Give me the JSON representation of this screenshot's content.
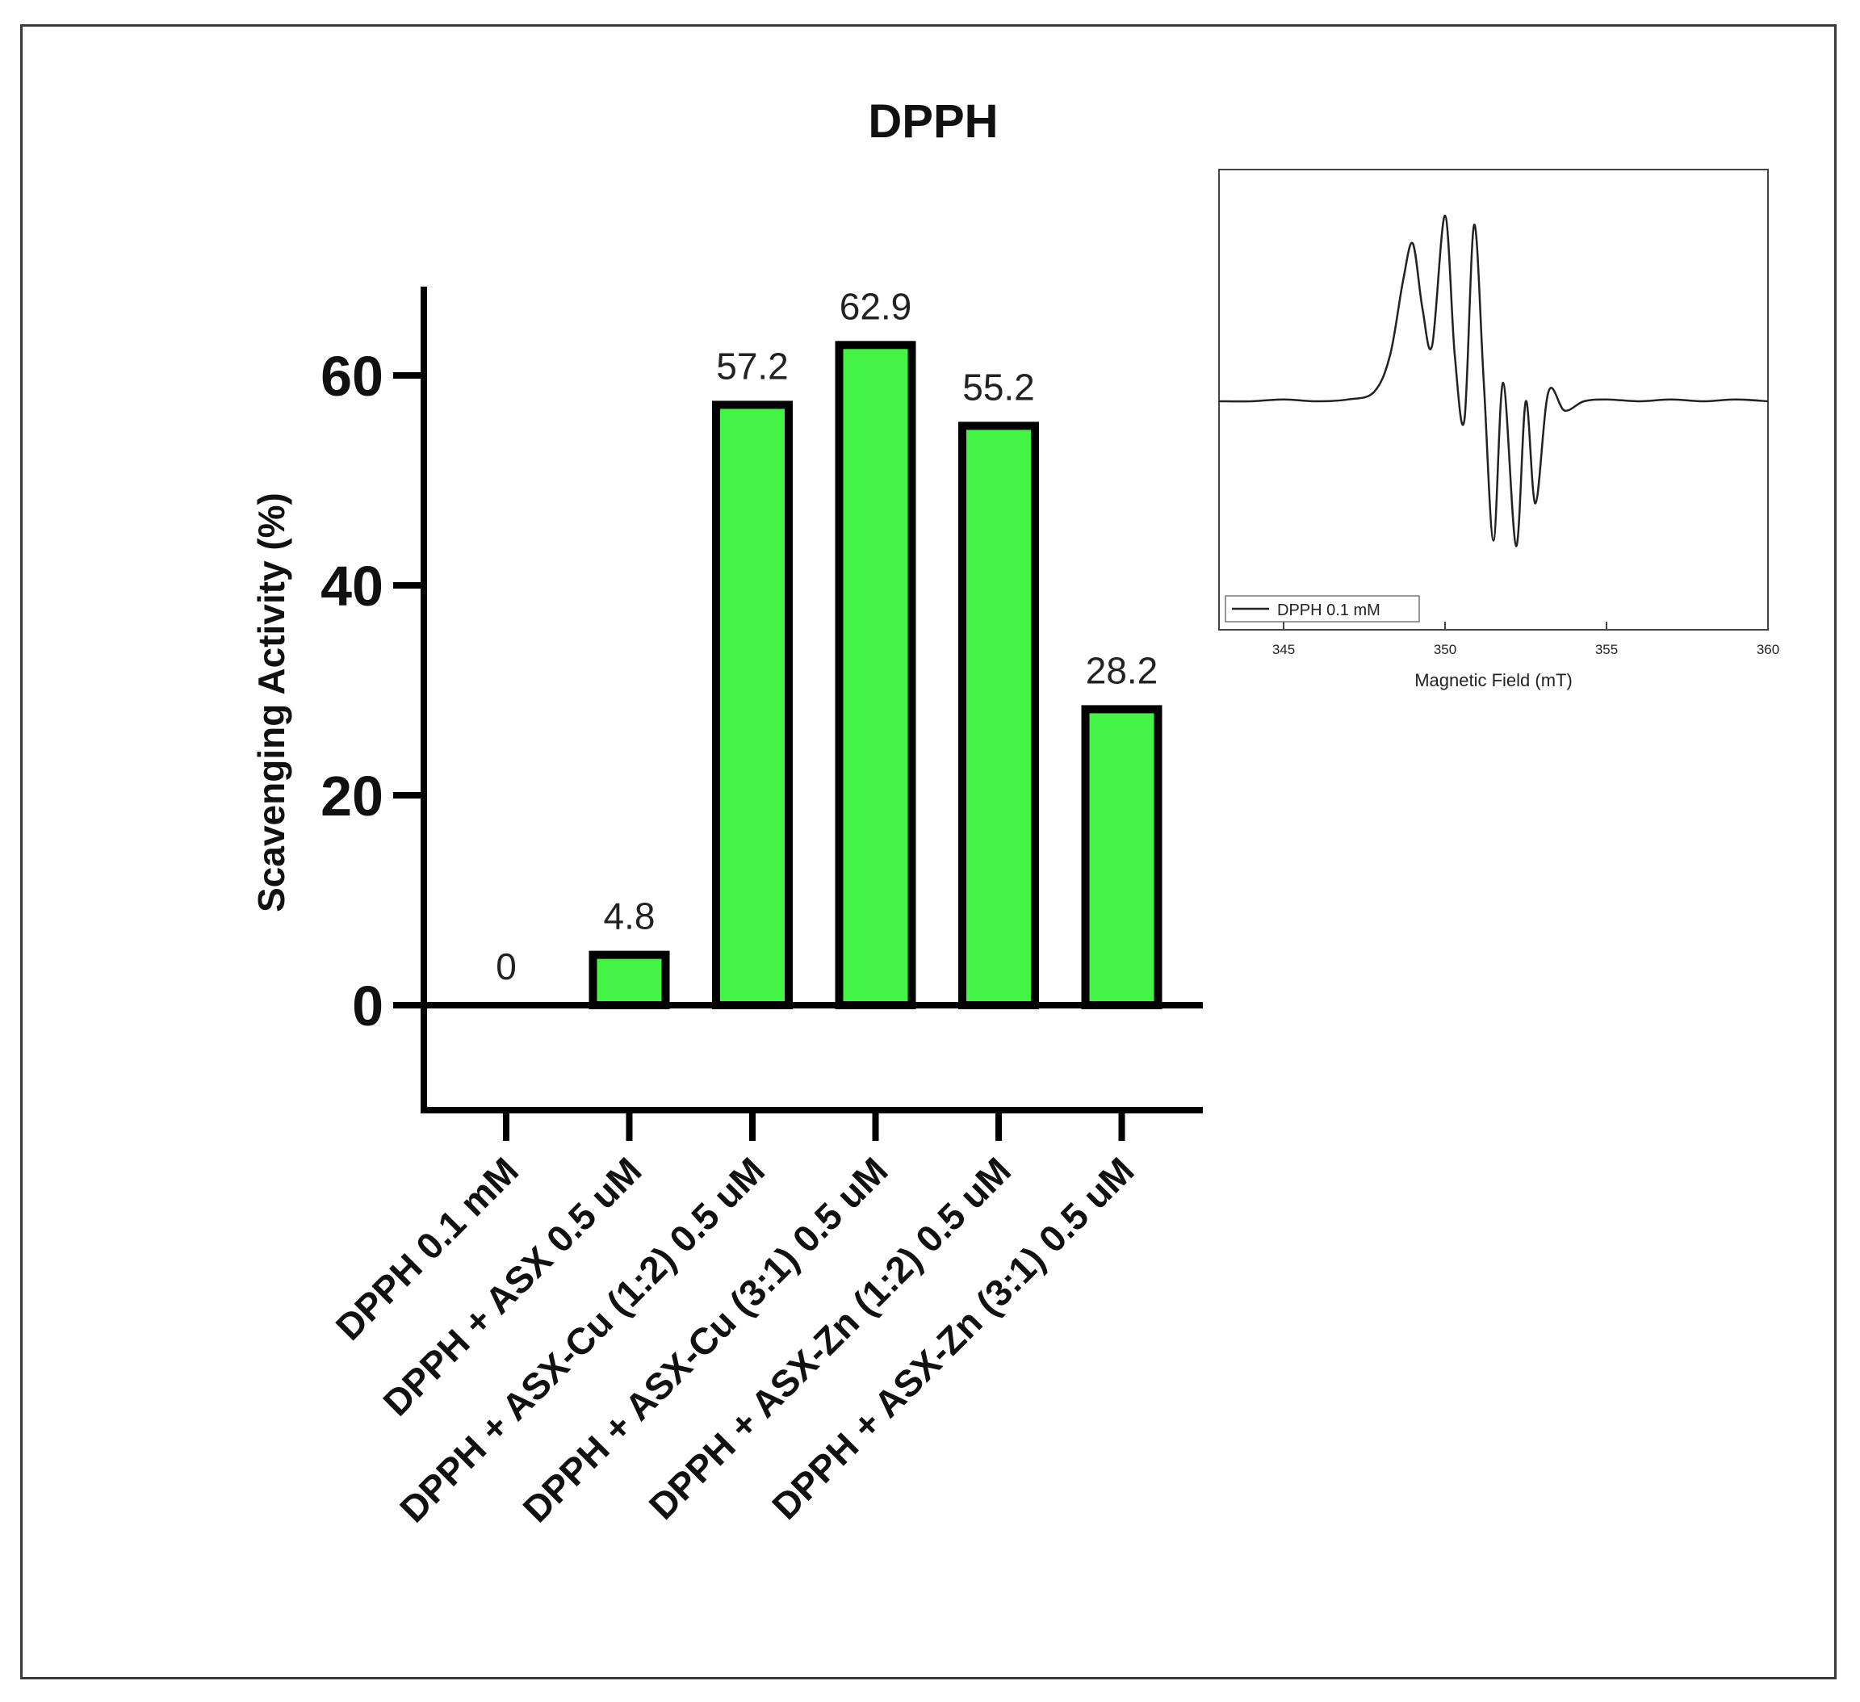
{
  "chart_data": [
    {
      "type": "bar",
      "title": "DPPH",
      "xlabel": "",
      "ylabel": "Scavenging Activity (%)",
      "ylim": [
        -10,
        70
      ],
      "yticks": [
        0,
        20,
        40,
        60
      ],
      "categories": [
        "DPPH 0.1 mM",
        "DPPH + ASX 0.5 uM",
        "DPPH + ASX-Cu (1:2) 0.5 uM",
        "DPPH + ASX-Cu (3:1) 0.5 uM",
        "DPPH + ASX-Zn (1:2) 0.5 uM",
        "DPPH + ASX-Zn (3:1) 0.5 uM"
      ],
      "values": [
        0,
        4.8,
        57.2,
        62.9,
        55.2,
        28.2
      ],
      "data_labels": [
        "0",
        "4.8",
        "57.2",
        "62.9",
        "55.2",
        "28.2"
      ],
      "bar_color": "#44f444",
      "edge_color": "#000000"
    },
    {
      "type": "line",
      "title": "",
      "xlabel": "Magnetic Field (mT)",
      "ylabel": "",
      "xlim": [
        343,
        360
      ],
      "xticks": [
        345,
        350,
        355,
        360
      ],
      "legend_position": "bottom-left",
      "series": [
        {
          "name": "DPPH 0.1 mM",
          "x": [
            343.0,
            344.0,
            345.0,
            346.0,
            347.0,
            347.8,
            348.3,
            348.7,
            349.0,
            349.3,
            349.6,
            350.0,
            350.3,
            350.6,
            350.9,
            351.2,
            351.5,
            351.8,
            352.2,
            352.5,
            352.8,
            353.2,
            353.7,
            354.3,
            355.0,
            356.0,
            357.0,
            358.0,
            359.0,
            360.0
          ],
          "y": [
            0.0,
            0.0,
            0.01,
            0.0,
            0.01,
            0.05,
            0.25,
            0.65,
            0.85,
            0.5,
            0.3,
            1.0,
            0.25,
            -0.1,
            0.95,
            0.1,
            -0.75,
            0.1,
            -0.78,
            0.0,
            -0.55,
            0.05,
            -0.05,
            0.0,
            0.01,
            0.0,
            0.01,
            0.0,
            0.01,
            0.0
          ]
        }
      ]
    }
  ]
}
